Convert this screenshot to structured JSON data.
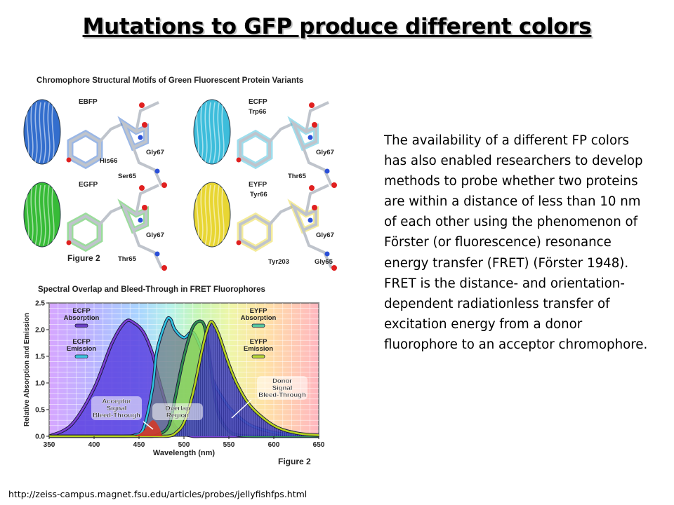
{
  "slide": {
    "title": "Mutations to GFP produce different colors",
    "body": "The availability of a different FP colors has also enabled researchers to develop methods to probe whether two proteins are within a distance of less than 10 nm of each other using the phenomenon of Förster (or fluorescence) resonance energy transfer (FRET) (Förster 1948). FRET is the distance- and orientation-dependent radiationless transfer of excitation energy from a donor fluorophore to an acceptor chromophore.",
    "source_url": "http://zeiss-campus.magnet.fsu.edu/articles/probes/jellyfishfps.html"
  },
  "structures_figure": {
    "title": "Chromophore Structural Motifs of Green Fluorescent Protein Variants",
    "figure_label": "Figure 2",
    "panels": [
      {
        "name": "EBFP",
        "color": "#1e5fc8",
        "labels": [
          "His66",
          "Gly67",
          "Ser65"
        ]
      },
      {
        "name": "ECFP",
        "color": "#29b6d8",
        "labels": [
          "Trp66",
          "Gly67",
          "Thr65"
        ]
      },
      {
        "name": "EGFP",
        "color": "#22b422",
        "labels": [
          "Gly67",
          "Thr65"
        ]
      },
      {
        "name": "EYFP",
        "color": "#e6d21e",
        "labels": [
          "Tyr66",
          "Gly67",
          "Tyr203",
          "Gly65"
        ]
      }
    ]
  },
  "chart_data": {
    "type": "area",
    "title": "Spectral Overlap and Bleed-Through in FRET Fluorophores",
    "xlabel": "Wavelength (nm)",
    "ylabel": "Relative Absorption and Emission",
    "figure_label": "Figure 2",
    "xlim": [
      350,
      650
    ],
    "ylim": [
      0,
      2.5
    ],
    "xticks": [
      "350",
      "400",
      "450",
      "500",
      "550",
      "600",
      "650"
    ],
    "yticks": [
      "0.0",
      "0.5",
      "1.0",
      "1.5",
      "2.0",
      "2.5"
    ],
    "grid": true,
    "x": [
      350,
      375,
      400,
      420,
      435,
      445,
      455,
      465,
      470,
      480,
      485,
      490,
      500,
      510,
      520,
      525,
      530,
      535,
      540,
      550,
      560,
      575,
      600,
      625,
      650
    ],
    "series": [
      {
        "name": "ECFP Absorption",
        "color": "#7b3fd6",
        "values": [
          0.0,
          0.22,
          0.9,
          1.75,
          2.15,
          2.12,
          1.95,
          1.55,
          1.2,
          0.6,
          0.35,
          0.18,
          0.05,
          0.0,
          0.0,
          0.0,
          0.0,
          0.0,
          0.0,
          0.0,
          0.0,
          0.0,
          0.0,
          0.0,
          0.0
        ]
      },
      {
        "name": "ECFP Emission",
        "color": "#2ec4e0",
        "values": [
          0.0,
          0.0,
          0.0,
          0.0,
          0.0,
          0.02,
          0.15,
          0.9,
          1.6,
          2.15,
          2.2,
          2.0,
          1.85,
          1.95,
          1.6,
          1.35,
          1.15,
          0.95,
          0.8,
          0.55,
          0.38,
          0.2,
          0.07,
          0.02,
          0.0
        ]
      },
      {
        "name": "EYFP Absorption",
        "color": "#2f8f4f",
        "values": [
          0.0,
          0.0,
          0.0,
          0.0,
          0.0,
          0.0,
          0.0,
          0.0,
          0.02,
          0.12,
          0.3,
          0.7,
          1.5,
          2.05,
          2.15,
          1.9,
          1.3,
          0.7,
          0.35,
          0.1,
          0.02,
          0.0,
          0.0,
          0.0,
          0.0
        ]
      },
      {
        "name": "EYFP Emission",
        "color": "#b7d41e",
        "values": [
          0.0,
          0.0,
          0.0,
          0.0,
          0.0,
          0.0,
          0.0,
          0.0,
          0.0,
          0.0,
          0.01,
          0.05,
          0.25,
          0.8,
          1.6,
          1.95,
          2.15,
          2.05,
          1.85,
          1.35,
          0.95,
          0.55,
          0.2,
          0.06,
          0.02
        ]
      }
    ],
    "legend": [
      {
        "label": "ECFP\nAbsorption",
        "color": "#6a3fc4"
      },
      {
        "label": "ECFP\nEmission",
        "color": "#3fc6e0"
      },
      {
        "label": "EYFP\nAbsorption",
        "color": "#58c9a0"
      },
      {
        "label": "EYFP\nEmission",
        "color": "#b8d836"
      }
    ],
    "annotations": [
      {
        "text": "Acceptor\nSignal\nBleed-Through"
      },
      {
        "text": "Overlap\nRegion"
      },
      {
        "text": "Donor\nSignal\nBleed-Through"
      }
    ]
  }
}
